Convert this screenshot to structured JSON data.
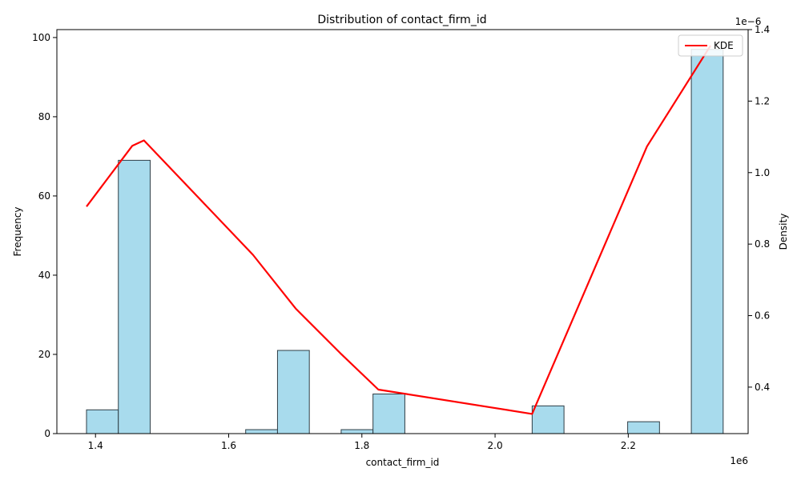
{
  "chart_data": {
    "type": "bar",
    "title": "Distribution of contact_firm_id",
    "xlabel": "contact_firm_id",
    "ylabel": "Frequency",
    "y2label": "Density",
    "x_offset_label": "1e6",
    "y2_offset_label": "1e−6",
    "xlim": [
      1.342,
      2.38
    ],
    "ylim": [
      0,
      102
    ],
    "y2lim": [
      0.27,
      1.4
    ],
    "x_ticks": [
      1.4,
      1.6,
      1.8,
      2.0,
      2.2
    ],
    "x_tick_labels": [
      "1.4",
      "1.6",
      "1.8",
      "2.0",
      "2.2"
    ],
    "y_ticks": [
      0,
      20,
      40,
      60,
      80,
      100
    ],
    "y_tick_labels": [
      "0",
      "20",
      "40",
      "60",
      "80",
      "100"
    ],
    "y2_ticks": [
      0.4,
      0.6,
      0.8,
      1.0,
      1.2,
      1.4
    ],
    "y2_tick_labels": [
      "0.4",
      "0.6",
      "0.8",
      "1.0",
      "1.2",
      "1.4"
    ],
    "bin_edges": [
      1.3865,
      1.4343,
      1.4821,
      1.5299,
      1.5777,
      1.6255,
      1.6733,
      1.7211,
      1.7689,
      1.8167,
      1.8645,
      1.9123,
      1.9601,
      2.0079,
      2.0557,
      2.1035,
      2.1513,
      2.1991,
      2.2469,
      2.2947,
      2.3425
    ],
    "counts": [
      6,
      69,
      0,
      0,
      0,
      1,
      21,
      0,
      1,
      10,
      0,
      0,
      0,
      0,
      7,
      0,
      0,
      3,
      0,
      97
    ],
    "series": [
      {
        "name": "KDE",
        "x": [
          1.3865,
          1.4553,
          1.4727,
          1.6364,
          1.7006,
          1.7676,
          1.8248,
          2.0556,
          2.2281,
          2.3235
        ],
        "y": [
          0.905,
          1.075,
          1.09,
          0.77,
          0.62,
          0.495,
          0.393,
          0.325,
          1.073,
          1.355
        ]
      }
    ],
    "legend": {
      "entry": "KDE",
      "position": "top-right"
    },
    "grid": false,
    "colors": {
      "bar_fill": "#a8dbed",
      "bar_edge": "#2f3e46",
      "kde_line": "#ff0000"
    }
  }
}
